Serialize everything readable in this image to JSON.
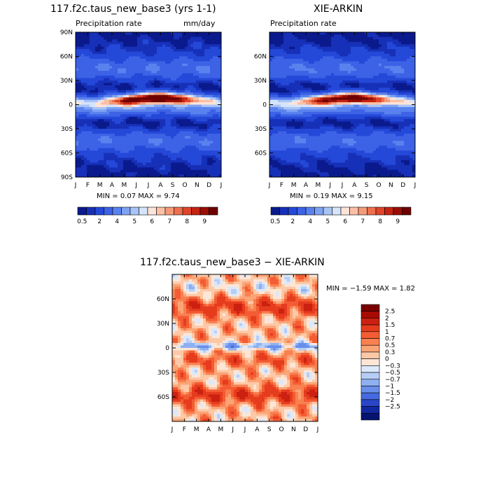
{
  "chart_data": [
    {
      "type": "heatmap",
      "title": "117.f2c.taus_new_base3 (yrs 1-1)",
      "subtitle_left": "Precipitation rate",
      "subtitle_right": "mm/day",
      "x_ticks": [
        "J",
        "F",
        "M",
        "A",
        "M",
        "J",
        "J",
        "A",
        "S",
        "O",
        "N",
        "D",
        "J"
      ],
      "y_ticks": [
        "90N",
        "60N",
        "30N",
        "0",
        "30S",
        "60S",
        "90S"
      ],
      "ylim": [
        -90,
        90
      ],
      "min_label": "MIN =",
      "min_value": "0.07",
      "max_label": "MAX =",
      "max_value": "9.74",
      "colorbar_labels": [
        "0.5",
        "2",
        "4",
        "5",
        "6",
        "7",
        "8",
        "9"
      ]
    },
    {
      "type": "heatmap",
      "title": "XIE-ARKIN",
      "subtitle_left": "Precipitation rate",
      "x_ticks": [
        "J",
        "F",
        "M",
        "A",
        "M",
        "J",
        "J",
        "A",
        "S",
        "O",
        "N",
        "D",
        "J"
      ],
      "y_ticks": [
        "60N",
        "30N",
        "0",
        "30S",
        "60S"
      ],
      "ylim": [
        -90,
        90
      ],
      "min_label": "MIN =",
      "min_value": "0.19",
      "max_label": "MAX =",
      "max_value": "9.15",
      "colorbar_labels": [
        "0.5",
        "2",
        "4",
        "5",
        "6",
        "7",
        "8",
        "9"
      ]
    },
    {
      "type": "heatmap",
      "title": "117.f2c.taus_new_base3 − XIE-ARKIN",
      "x_ticks": [
        "J",
        "F",
        "M",
        "A",
        "M",
        "J",
        "J",
        "A",
        "S",
        "O",
        "N",
        "D",
        "J"
      ],
      "y_ticks": [
        "60N",
        "30N",
        "0",
        "30S",
        "60S"
      ],
      "ylim": [
        -90,
        90
      ],
      "min_label": "MIN =",
      "min_value": "−1.59",
      "max_label": "MAX =",
      "max_value": "1.82",
      "colorbar_labels": [
        "2.5",
        "2",
        "1.5",
        "1",
        "0.7",
        "0.5",
        "0.3",
        "0",
        "−0.3",
        "−0.5",
        "−0.7",
        "−1",
        "−1.5",
        "−2",
        "−2.5"
      ]
    }
  ],
  "colors": {
    "precip_scale": [
      "#0a1a8c",
      "#1730b8",
      "#2448d8",
      "#3d62e6",
      "#5a82ee",
      "#7ea2f2",
      "#a8c4f6",
      "#d6e4fb",
      "#fde4d8",
      "#fbc0a6",
      "#f59a78",
      "#ee704e",
      "#e0442a",
      "#c42412",
      "#9a0e06",
      "#6e0000"
    ],
    "diff_scale": [
      "#7a0000",
      "#a80a04",
      "#cc2010",
      "#e63c1e",
      "#f45c34",
      "#f98050",
      "#fba476",
      "#fdc8a6",
      "#fde6d6",
      "#dce8fb",
      "#b6ceF6",
      "#8eb0f0",
      "#6a8eea",
      "#466ae0",
      "#2a46c8",
      "#1228a0",
      "#061470"
    ]
  }
}
